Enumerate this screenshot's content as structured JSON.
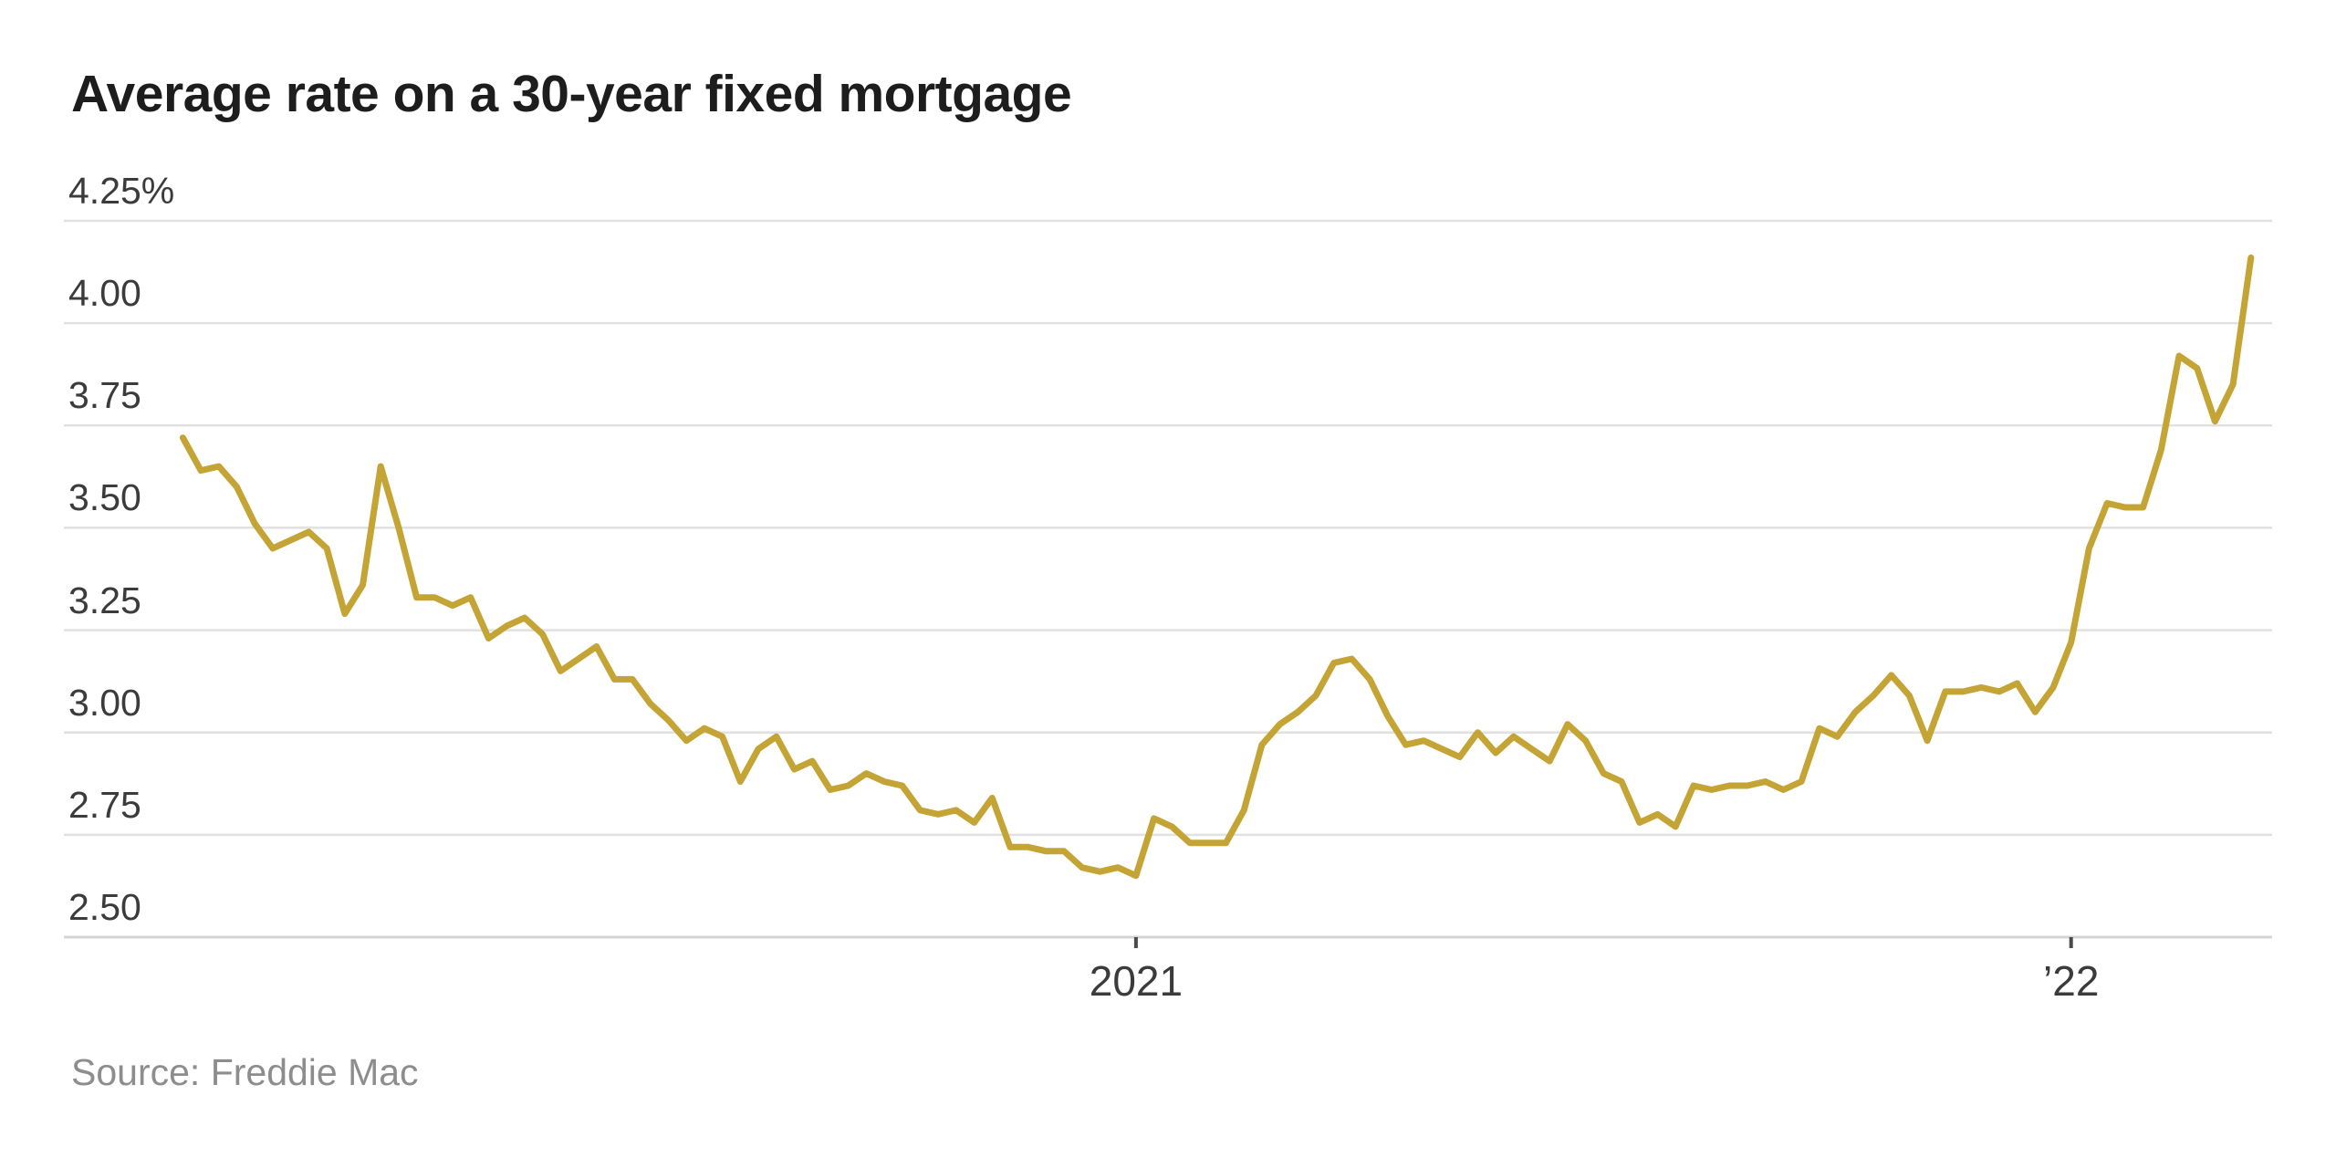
{
  "header": {
    "title": "Average rate on a 30-year fixed mortgage"
  },
  "footer": {
    "source": "Source: Freddie Mac"
  },
  "colors": {
    "background": "#ffffff",
    "line": "#c3a435",
    "gridline": "#e1e1e1",
    "axis_line": "#d4d4d4",
    "tick": "#4a4a4a",
    "title_text": "#1d1d1d",
    "axis_label_text": "#3b3b3b",
    "source_text": "#8d8d8d"
  },
  "chart_data": {
    "type": "line",
    "title": "Average rate on a 30-year fixed mortgage",
    "source": "Freddie Mac",
    "unit": "percent",
    "frequency": "weekly",
    "x_range": "Jan 2020 - Mar 2022",
    "ylim": [
      2.5,
      4.25
    ],
    "grid": "horizontal",
    "legend": "none",
    "ytick_labels": [
      "4.25%",
      "4.00",
      "3.75",
      "3.50",
      "3.25",
      "3.00",
      "2.75",
      "2.50"
    ],
    "ytick_values": [
      4.25,
      4.0,
      3.75,
      3.5,
      3.25,
      3.0,
      2.75,
      2.5
    ],
    "xtick_labels": [
      "2021",
      "’22"
    ],
    "xtick_indices": [
      53,
      105
    ],
    "series": [
      {
        "name": "30-year fixed mortgage average rate",
        "values": [
          3.72,
          3.64,
          3.65,
          3.6,
          3.51,
          3.45,
          3.47,
          3.49,
          3.45,
          3.29,
          3.36,
          3.65,
          3.5,
          3.33,
          3.33,
          3.31,
          3.33,
          3.23,
          3.26,
          3.28,
          3.24,
          3.15,
          3.18,
          3.21,
          3.13,
          3.13,
          3.07,
          3.03,
          2.98,
          3.01,
          2.99,
          2.88,
          2.96,
          2.99,
          2.91,
          2.93,
          2.86,
          2.87,
          2.9,
          2.88,
          2.87,
          2.81,
          2.8,
          2.81,
          2.78,
          2.84,
          2.72,
          2.72,
          2.71,
          2.71,
          2.67,
          2.66,
          2.67,
          2.65,
          2.79,
          2.77,
          2.73,
          2.73,
          2.73,
          2.81,
          2.97,
          3.02,
          3.05,
          3.09,
          3.17,
          3.18,
          3.13,
          3.04,
          2.97,
          2.98,
          2.96,
          2.94,
          3.0,
          2.95,
          2.99,
          2.96,
          2.93,
          3.02,
          2.98,
          2.9,
          2.88,
          2.78,
          2.8,
          2.77,
          2.87,
          2.86,
          2.87,
          2.87,
          2.88,
          2.86,
          2.88,
          3.01,
          2.99,
          3.05,
          3.09,
          3.14,
          3.09,
          2.98,
          3.1,
          3.1,
          3.11,
          3.1,
          3.12,
          3.05,
          3.11,
          3.22,
          3.45,
          3.56,
          3.55,
          3.55,
          3.69,
          3.92,
          3.89,
          3.76,
          3.85,
          4.16
        ]
      }
    ]
  }
}
